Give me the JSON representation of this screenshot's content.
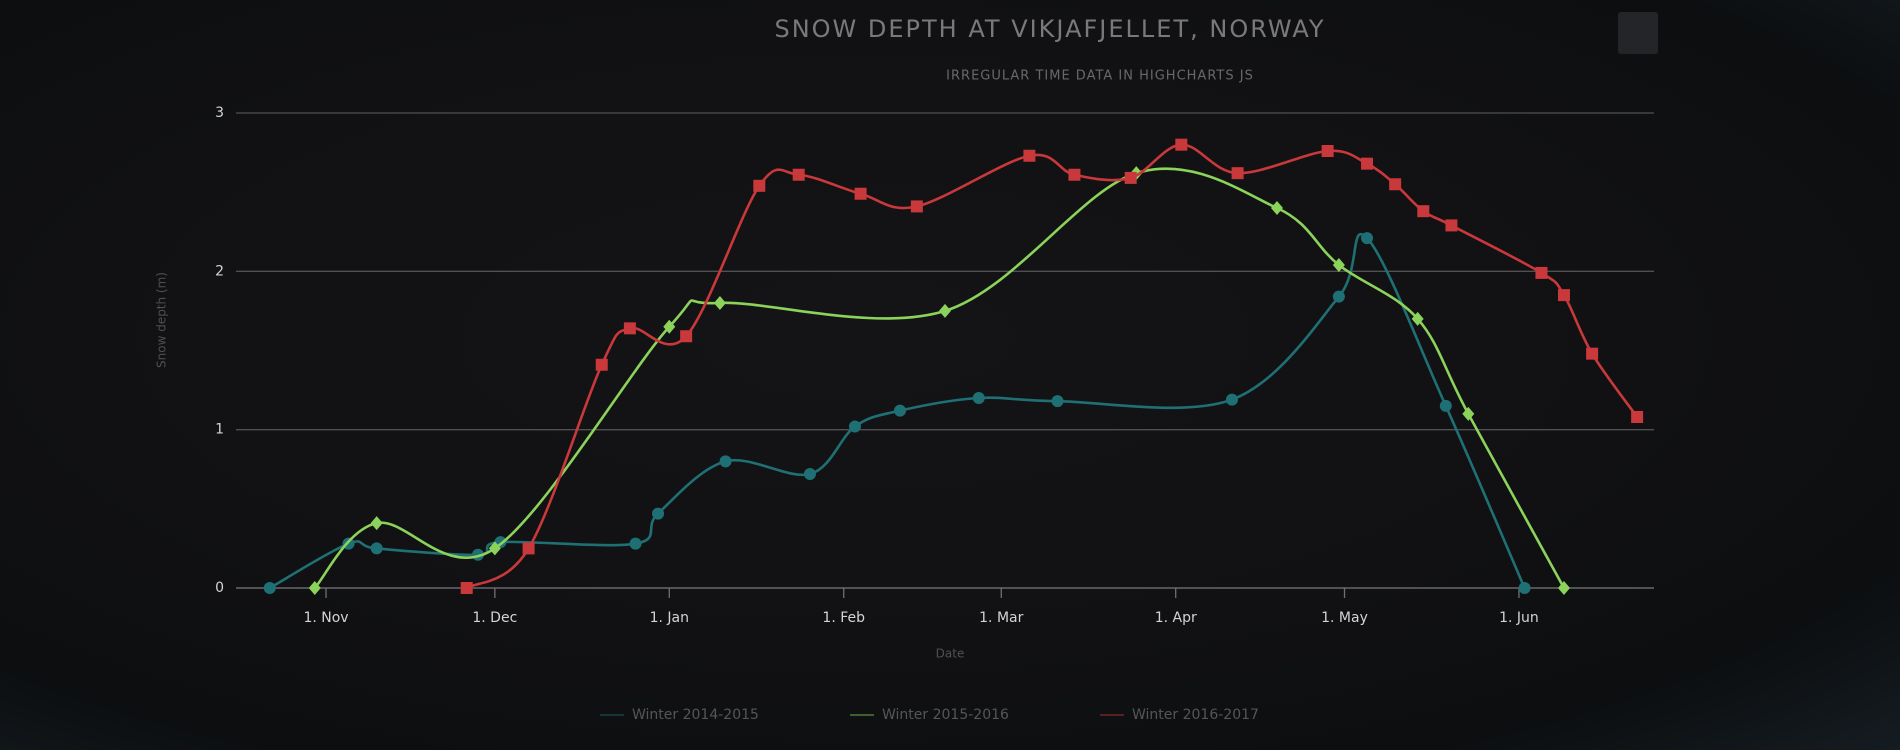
{
  "chart_data": {
    "type": "spline",
    "title": "SNOW DEPTH AT VIKJAFJELLET, NORWAY",
    "subtitle": "IRREGULAR TIME DATA IN HIGHCHARTS JS",
    "x_label": "Date",
    "y_label": "Snow depth (m)",
    "xlim": [
      -16,
      236
    ],
    "ylim": [
      0,
      3
    ],
    "xticks": [
      {
        "value": 0,
        "label": "1. Nov"
      },
      {
        "value": 30,
        "label": "1. Dec"
      },
      {
        "value": 61,
        "label": "1. Jan"
      },
      {
        "value": 92,
        "label": "1. Feb"
      },
      {
        "value": 120,
        "label": "1. Mar"
      },
      {
        "value": 151,
        "label": "1. Apr"
      },
      {
        "value": 181,
        "label": "1. May"
      },
      {
        "value": 212,
        "label": "1. Jun"
      }
    ],
    "yticks": [
      0,
      1,
      2,
      3
    ],
    "grid": true,
    "legend": "bottom",
    "series": [
      {
        "name": "Winter 2014-2015",
        "color": "#1f7074",
        "marker": "circle",
        "x": [
          -10,
          4,
          9,
          27,
          31,
          55,
          59,
          71,
          86,
          94,
          102,
          116,
          130,
          161,
          180,
          185,
          199,
          213
        ],
        "values": [
          0,
          0.28,
          0.25,
          0.21,
          0.29,
          0.28,
          0.47,
          0.8,
          0.72,
          1.02,
          1.12,
          1.2,
          1.18,
          1.19,
          1.84,
          2.21,
          1.15,
          0
        ]
      },
      {
        "name": "Winter 2015-2016",
        "color": "#8bd35a",
        "marker": "diamond",
        "x": [
          -2,
          9,
          30,
          61,
          70,
          110,
          144,
          169,
          180,
          194,
          203,
          220
        ],
        "values": [
          0,
          0.41,
          0.25,
          1.65,
          1.8,
          1.75,
          2.62,
          2.4,
          2.04,
          1.7,
          1.1,
          0
        ]
      },
      {
        "name": "Winter 2016-2017",
        "color": "#c9383a",
        "marker": "square",
        "x": [
          25,
          36,
          49,
          54,
          64,
          77,
          84,
          95,
          105,
          125,
          133,
          143,
          152,
          162,
          178,
          185,
          190,
          195,
          200,
          216,
          220,
          225,
          233
        ],
        "values": [
          0,
          0.25,
          1.41,
          1.64,
          1.59,
          2.54,
          2.61,
          2.49,
          2.41,
          2.73,
          2.61,
          2.59,
          2.8,
          2.62,
          2.76,
          2.68,
          2.55,
          2.38,
          2.29,
          1.99,
          1.85,
          1.48,
          1.08
        ]
      }
    ]
  }
}
